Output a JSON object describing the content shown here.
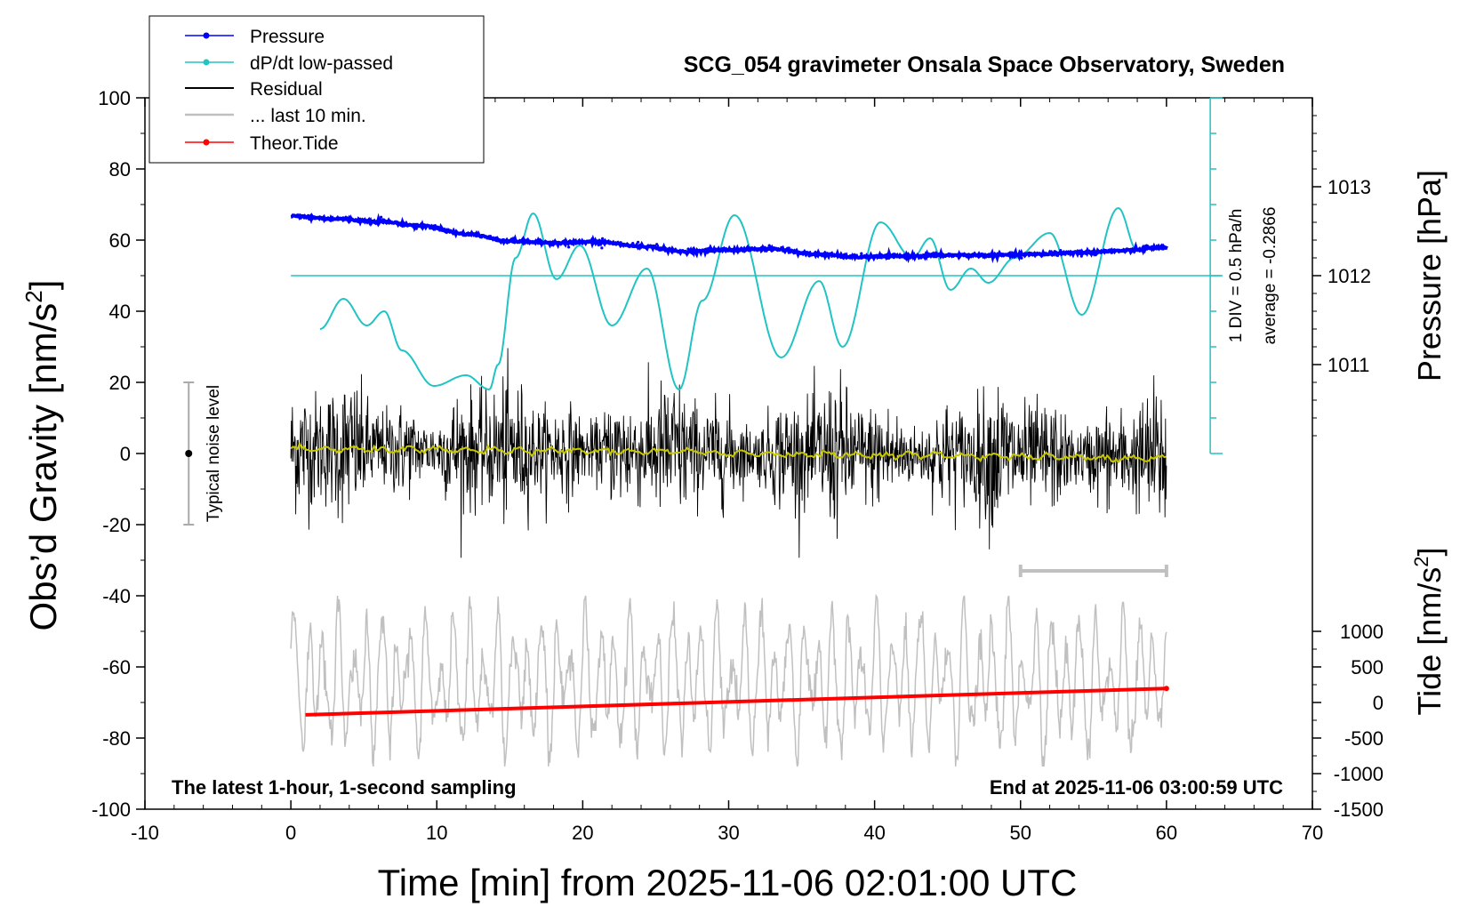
{
  "chart_data": {
    "type": "line",
    "title": "SCG_054 gravimeter Onsala Space Observatory, Sweden",
    "xlabel": "Time [min] from 2025-11-06 02:01:00 UTC",
    "ylabel": "Obs’d Gravity [nm/s",
    "ylabel_sup": "2",
    "ylabel_close": "]",
    "xlim": [
      -10,
      70
    ],
    "ylim": [
      -100,
      100
    ],
    "x_ticks": [
      -10,
      0,
      10,
      20,
      30,
      40,
      50,
      60,
      70
    ],
    "y_ticks": [
      -100,
      -80,
      -60,
      -40,
      -20,
      0,
      20,
      40,
      60,
      80,
      100
    ],
    "pressure_axis": {
      "label": "Pressure [hPa]",
      "ticks": [
        1011,
        1012,
        1013
      ],
      "value_at_gravity_0": 1010,
      "value_at_gravity_100": 1014
    },
    "tide_axis": {
      "label": "Tide [nm/s",
      "label_sup": "2",
      "label_close": "]",
      "ticks": [
        1000,
        500,
        0,
        -500,
        -1000,
        -1500
      ],
      "value_at_gravity_0": 3500,
      "value_at_gravity_minus100": -1500
    },
    "dpdt_axis": {
      "div_label": "1 DIV = 0.5 hPa/h",
      "average_label": "average = -0.2866"
    },
    "legend": {
      "position": "top-left",
      "entries": [
        {
          "label": "Pressure",
          "color": "#0000ff",
          "marker": true
        },
        {
          "label": "dP/dt low-passed",
          "color": "#22c3c3",
          "marker": true
        },
        {
          "label": "Residual",
          "color": "#000000",
          "marker": false
        },
        {
          "label": "... last 10 min.",
          "color": "#c0c0c0",
          "marker": false
        },
        {
          "label": "Theor.Tide",
          "color": "#ff0000",
          "marker": true
        }
      ]
    },
    "noise_indicator": {
      "label": "Typical noise level",
      "x": -7,
      "y": 0,
      "low": -20,
      "high": 20
    },
    "last10_bracket": {
      "x_start": 50,
      "x_end": 60,
      "y": -33
    },
    "series": [
      {
        "name": "Pressure",
        "color": "#0000ff",
        "unit": "hPa",
        "x": [
          0,
          3,
          6,
          9,
          12,
          15,
          18,
          21,
          24,
          27,
          30,
          33,
          36,
          39,
          42,
          45,
          48,
          51,
          54,
          57,
          60
        ],
        "values": [
          1012.67,
          1012.64,
          1012.61,
          1012.56,
          1012.47,
          1012.39,
          1012.37,
          1012.38,
          1012.33,
          1012.27,
          1012.29,
          1012.3,
          1012.24,
          1012.21,
          1012.22,
          1012.23,
          1012.23,
          1012.24,
          1012.26,
          1012.28,
          1012.32
        ]
      },
      {
        "name": "dP/dt low-passed",
        "color": "#22c3c3",
        "unit": "gravity-scale",
        "x": [
          2,
          3.6,
          5.2,
          6.4,
          7.6,
          9.8,
          12,
          13.6,
          14.2,
          15.4,
          16.6,
          18.2,
          19.8,
          22,
          24.4,
          26.6,
          28.2,
          30.4,
          33.6,
          36.2,
          37.8,
          40.4,
          42.6,
          43.8,
          45.2,
          46.6,
          47.8,
          49.6,
          52,
          54.2,
          56.7,
          58
        ],
        "values": [
          35,
          43.5,
          36,
          40,
          29,
          19,
          22,
          18,
          25,
          55,
          67.5,
          49,
          58.5,
          36,
          52,
          18,
          43,
          67,
          27,
          48.5,
          30,
          65,
          55,
          60.5,
          46,
          52,
          48,
          55,
          62,
          39,
          69,
          57
        ]
      },
      {
        "name": "Residual",
        "color": "#000000",
        "unit": "nm/s2",
        "x_range": [
          0,
          60
        ],
        "amplitude_range": [
          -33,
          30
        ],
        "noise_level": 20
      },
      {
        "name": "Residual smoothed",
        "color": "#c8c800",
        "unit": "nm/s2",
        "x": [
          0,
          20,
          40,
          60
        ],
        "values": [
          1.2,
          0.7,
          -0.4,
          -1.3
        ]
      },
      {
        "name": "... last 10 min.",
        "color": "#c0c0c0",
        "unit": "nm/s2",
        "x_range": [
          0,
          60
        ],
        "amplitude_range": [
          -88,
          -40
        ]
      },
      {
        "name": "Theor.Tide",
        "color": "#ff0000",
        "unit": "nm/s2",
        "x": [
          1,
          60
        ],
        "values": [
          -174,
          197
        ]
      }
    ],
    "annotations": {
      "footer_left": "The latest 1-hour, 1-second sampling",
      "footer_right": "End at 2025-11-06 03:00:59 UTC"
    }
  }
}
